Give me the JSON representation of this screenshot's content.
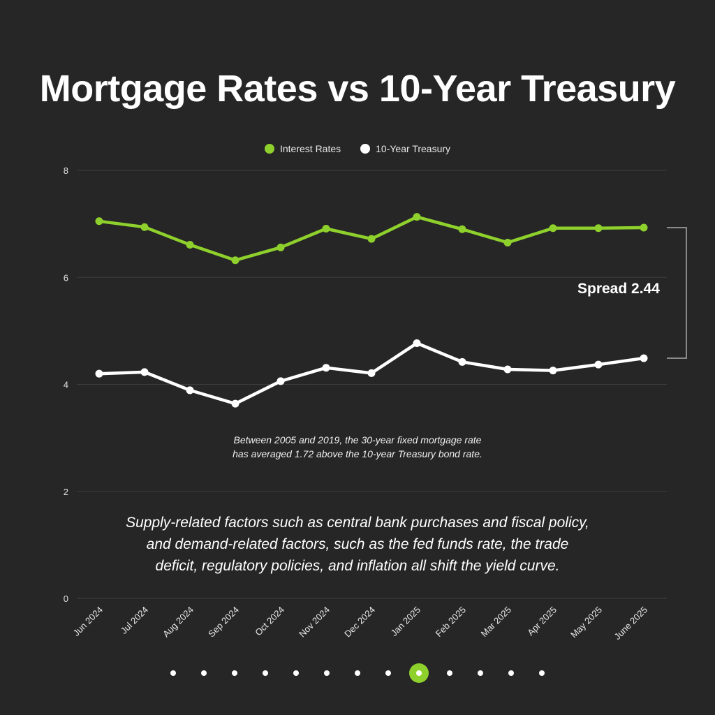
{
  "colors": {
    "background": "#262626",
    "interest_rates": "#8fd12c",
    "treasury": "#ffffff",
    "grid": "#3d3d3d",
    "bracket": "#8a8a8a"
  },
  "annotations": {
    "spread_label": "Spread 2.44",
    "note_line1": "Between 2005 and 2019, the 30-year fixed mortgage rate",
    "note_line2": "has averaged 1.72 above the 10-year Treasury bond rate.",
    "body_line1": "Supply-related factors such as central bank purchases and fiscal policy,",
    "body_line2": "and demand-related factors, such as the fed funds rate, the trade",
    "body_line3": "deficit, regulatory policies, and inflation all shift the yield curve."
  },
  "pagination": {
    "total": 13,
    "active_index": 8
  },
  "chart_data": {
    "type": "line",
    "title": "Mortgage Rates vs 10-Year Treasury",
    "xlabel": "",
    "ylabel": "",
    "categories": [
      "Jun 2024",
      "Jul 2024",
      "Aug 2024",
      "Sep 2024",
      "Oct 2024",
      "Nov 2024",
      "Dec 2024",
      "Jan 2025",
      "Feb 2025",
      "Mar 2025",
      "Apr 2025",
      "May 2025",
      "June 2025"
    ],
    "series": [
      {
        "name": "Interest Rates",
        "color": "#8fd12c",
        "values": [
          7.05,
          6.94,
          6.61,
          6.32,
          6.56,
          6.91,
          6.72,
          7.13,
          6.9,
          6.65,
          6.92,
          6.92,
          6.93
        ]
      },
      {
        "name": "10-Year Treasury",
        "color": "#ffffff",
        "values": [
          4.2,
          4.23,
          3.89,
          3.64,
          4.06,
          4.31,
          4.21,
          4.77,
          4.42,
          4.28,
          4.26,
          4.37,
          4.49
        ]
      }
    ],
    "ylim": [
      0,
      8
    ],
    "yticks": [
      0,
      2,
      4,
      6,
      8
    ],
    "grid": true,
    "legend_position": "top-center",
    "spread_bracket": {
      "from": 6.93,
      "to": 4.49
    }
  }
}
